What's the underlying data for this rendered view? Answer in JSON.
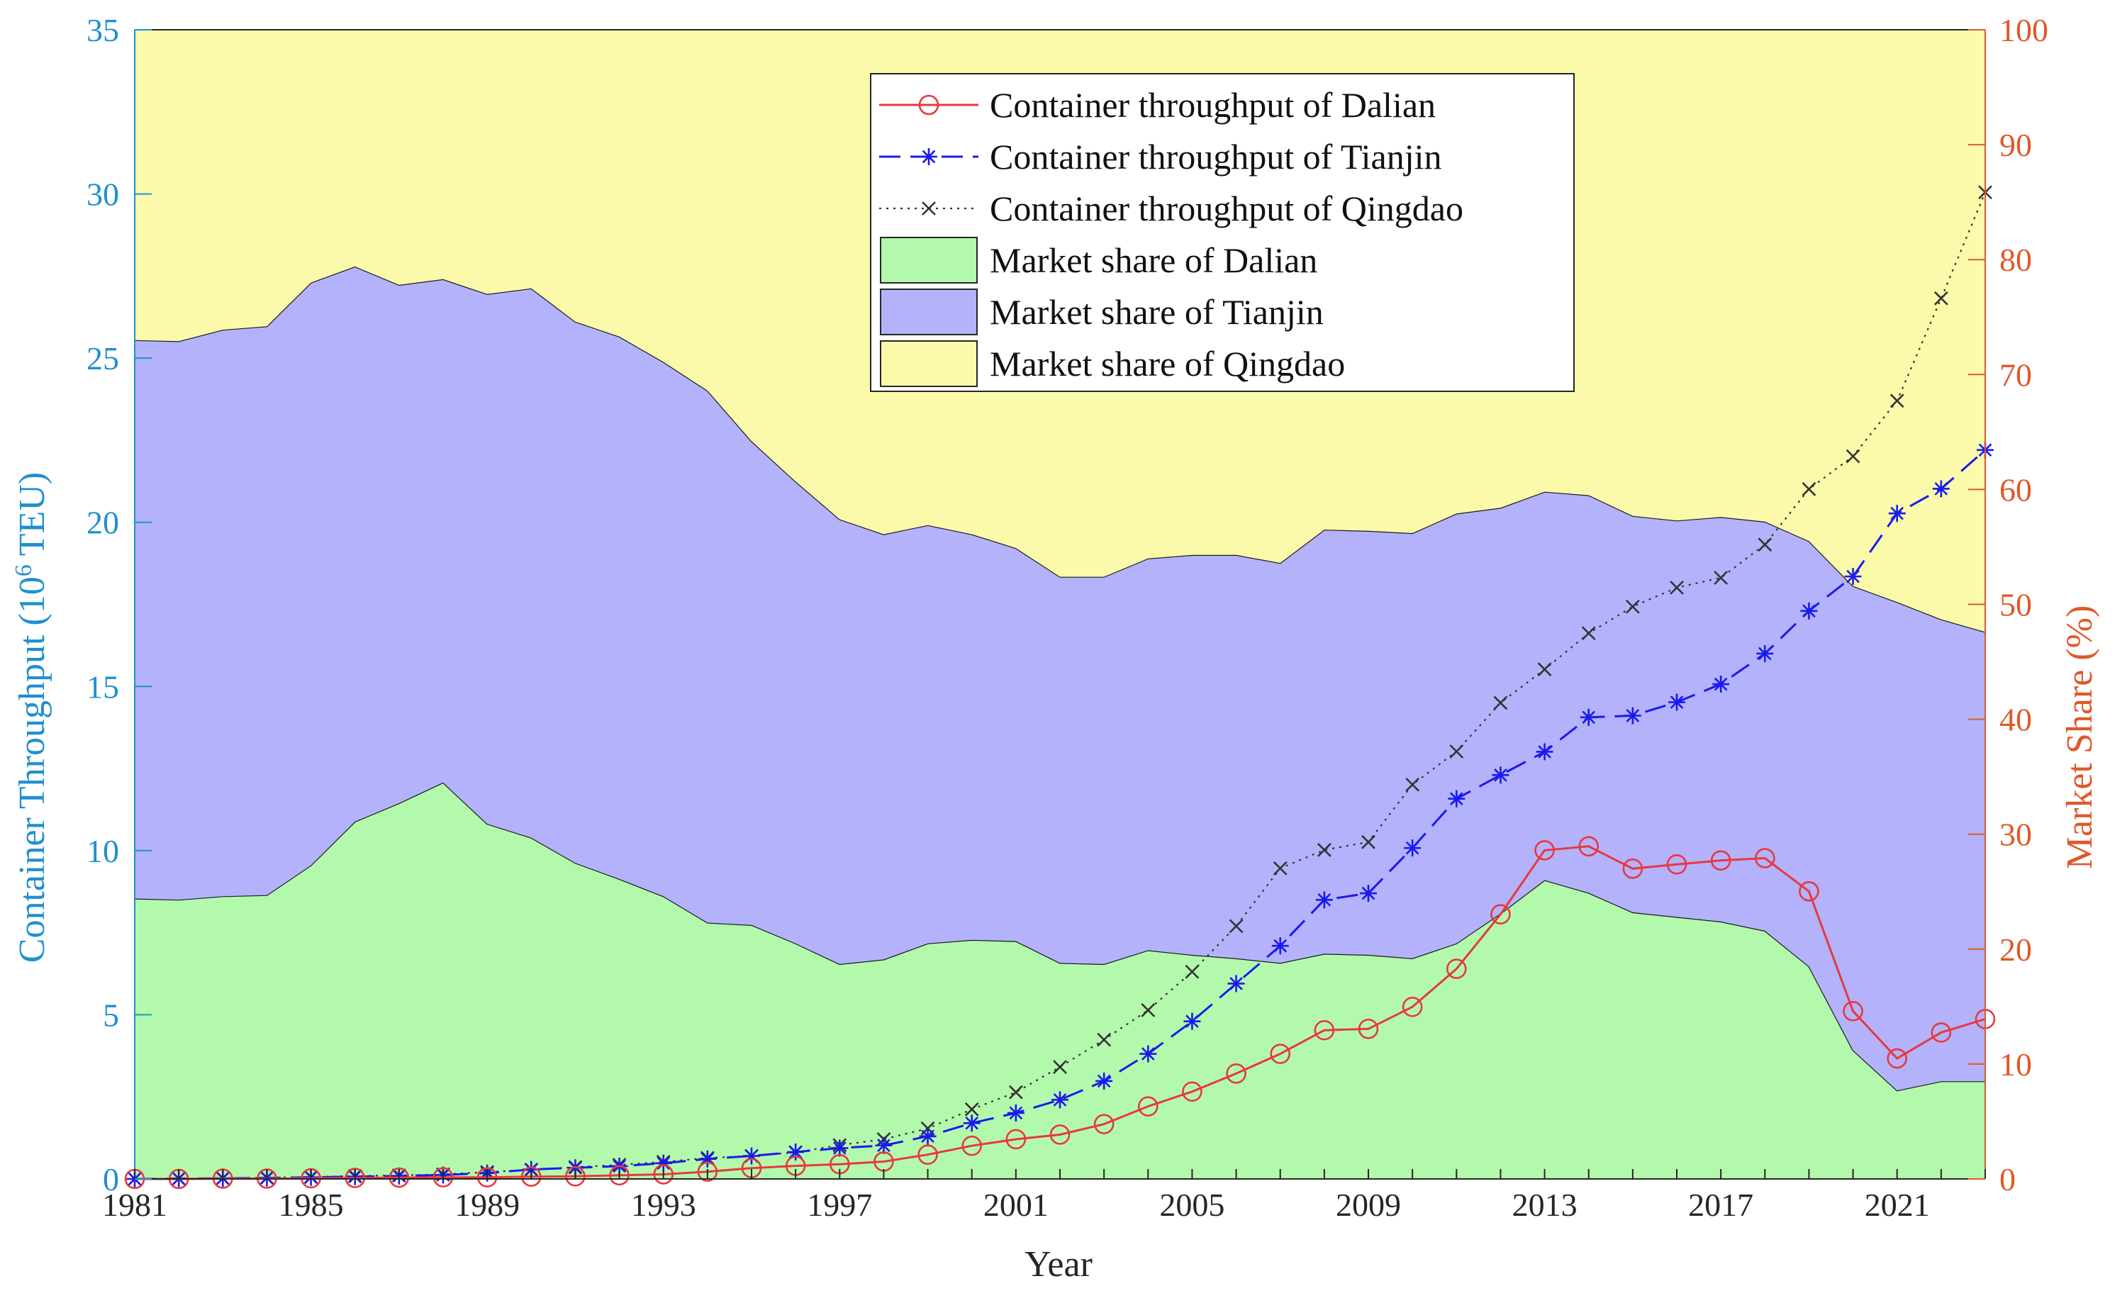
{
  "chart_data": {
    "type": "area",
    "xlabel": "Year",
    "ylabel_left": "Container Throughput (10^6 TEU)",
    "ylabel_left_prefix": "Container Throughput (10",
    "ylabel_left_sup": "6",
    "ylabel_left_suffix": " TEU)",
    "ylabel_right": "Market Share (%)",
    "xlim": [
      1981,
      2023
    ],
    "ylim_left": [
      0,
      35
    ],
    "ylim_right": [
      0,
      100
    ],
    "x_ticks": [
      "1981",
      "1985",
      "1989",
      "1993",
      "1997",
      "2001",
      "2005",
      "2009",
      "2013",
      "2017",
      "2021"
    ],
    "y_left_ticks": [
      "0",
      "5",
      "10",
      "15",
      "20",
      "25",
      "30",
      "35"
    ],
    "y_right_ticks": [
      "0",
      "10",
      "20",
      "30",
      "40",
      "50",
      "60",
      "70",
      "80",
      "90",
      "100"
    ],
    "grid": false,
    "legend_position": "top-center",
    "colors": {
      "left_axis": "#1f8fd0",
      "right_axis": "#e0582a",
      "dalian_line": "#e8383c",
      "tianjin_line": "#1a1aee",
      "qingdao_line": "#333333",
      "dalian_area": "#b3f9ac",
      "tianjin_area": "#b3b2fb",
      "qingdao_area": "#fafaaa"
    },
    "x": [
      1981,
      1982,
      1983,
      1984,
      1985,
      1986,
      1987,
      1988,
      1989,
      1990,
      1991,
      1992,
      1993,
      1994,
      1995,
      1996,
      1997,
      1998,
      1999,
      2000,
      2001,
      2002,
      2003,
      2004,
      2005,
      2006,
      2007,
      2008,
      2009,
      2010,
      2011,
      2012,
      2013,
      2014,
      2015,
      2016,
      2017,
      2018,
      2019,
      2020,
      2021,
      2022,
      2023
    ],
    "throughput_series": [
      {
        "name": "Container throughput of Dalian",
        "axis": "left",
        "values": [
          0.0,
          0.0,
          0.01,
          0.01,
          0.02,
          0.03,
          0.04,
          0.05,
          0.05,
          0.07,
          0.08,
          0.11,
          0.14,
          0.22,
          0.33,
          0.4,
          0.45,
          0.53,
          0.74,
          1.01,
          1.21,
          1.35,
          1.67,
          2.21,
          2.66,
          3.21,
          3.81,
          4.53,
          4.57,
          5.24,
          6.4,
          8.06,
          10.01,
          10.13,
          9.45,
          9.58,
          9.7,
          9.77,
          8.76,
          5.11,
          3.67,
          4.46,
          4.87
        ]
      },
      {
        "name": "Container throughput of Tianjin",
        "axis": "left",
        "values": [
          0.0,
          0.01,
          0.02,
          0.03,
          0.05,
          0.07,
          0.09,
          0.12,
          0.18,
          0.29,
          0.34,
          0.39,
          0.48,
          0.61,
          0.7,
          0.82,
          0.94,
          1.02,
          1.3,
          1.7,
          2.01,
          2.41,
          2.98,
          3.81,
          4.8,
          5.95,
          7.1,
          8.5,
          8.7,
          10.08,
          11.58,
          12.3,
          13.01,
          14.06,
          14.11,
          14.52,
          15.07,
          16.0,
          17.3,
          18.35,
          20.27,
          21.02,
          22.2
        ]
      },
      {
        "name": "Container throughput of Qingdao",
        "axis": "left",
        "values": [
          0.0,
          0.01,
          0.02,
          0.04,
          0.06,
          0.09,
          0.11,
          0.14,
          0.21,
          0.28,
          0.36,
          0.43,
          0.52,
          0.64,
          0.7,
          0.81,
          1.03,
          1.21,
          1.54,
          2.12,
          2.64,
          3.41,
          4.24,
          5.14,
          6.31,
          7.7,
          9.46,
          10.02,
          10.26,
          12.01,
          13.02,
          14.5,
          15.52,
          16.62,
          17.43,
          18.01,
          18.31,
          19.32,
          21.01,
          22.01,
          23.7,
          26.82,
          30.05
        ]
      }
    ],
    "share_series": [
      {
        "name": "Market share of Dalian",
        "axis": "right",
        "cumulative_top": [
          24.4,
          24.3,
          24.6,
          24.7,
          27.3,
          31.1,
          32.7,
          34.5,
          30.9,
          29.7,
          27.5,
          26.1,
          24.6,
          22.3,
          22.1,
          20.5,
          18.7,
          19.1,
          20.5,
          20.8,
          20.7,
          18.8,
          18.7,
          19.9,
          19.5,
          19.2,
          18.8,
          19.6,
          19.5,
          19.2,
          20.5,
          23.1,
          26.0,
          24.9,
          23.2,
          22.8,
          22.4,
          21.6,
          18.5,
          11.2,
          7.7,
          8.5,
          8.5
        ]
      },
      {
        "name": "Market share of Tianjin",
        "axis": "right",
        "cumulative_top": [
          73.0,
          72.9,
          73.9,
          74.2,
          78.0,
          79.4,
          77.8,
          78.3,
          77.0,
          77.5,
          74.6,
          73.3,
          71.1,
          68.6,
          64.2,
          60.7,
          57.4,
          56.1,
          56.9,
          56.1,
          54.9,
          52.4,
          52.4,
          54.0,
          54.3,
          54.3,
          53.6,
          56.5,
          56.4,
          56.2,
          57.9,
          58.4,
          59.8,
          59.5,
          57.7,
          57.3,
          57.6,
          57.2,
          55.5,
          51.6,
          50.2,
          48.7,
          47.6
        ]
      },
      {
        "name": "Market share of Qingdao",
        "axis": "right",
        "cumulative_top": [
          100,
          100,
          100,
          100,
          100,
          100,
          100,
          100,
          100,
          100,
          100,
          100,
          100,
          100,
          100,
          100,
          100,
          100,
          100,
          100,
          100,
          100,
          100,
          100,
          100,
          100,
          100,
          100,
          100,
          100,
          100,
          100,
          100,
          100,
          100,
          100,
          100,
          100,
          100,
          100,
          100,
          100,
          100
        ]
      }
    ],
    "legend": [
      {
        "label": "Container throughput of Dalian",
        "kind": "line",
        "marker": "circle"
      },
      {
        "label": "Container throughput of Tianjin",
        "kind": "line",
        "marker": "star"
      },
      {
        "label": "Container throughput of Qingdao",
        "kind": "line",
        "marker": "cross"
      },
      {
        "label": "Market share of Dalian",
        "kind": "patch"
      },
      {
        "label": "Market share of Tianjin",
        "kind": "patch"
      },
      {
        "label": "Market share of Qingdao",
        "kind": "patch"
      }
    ]
  }
}
